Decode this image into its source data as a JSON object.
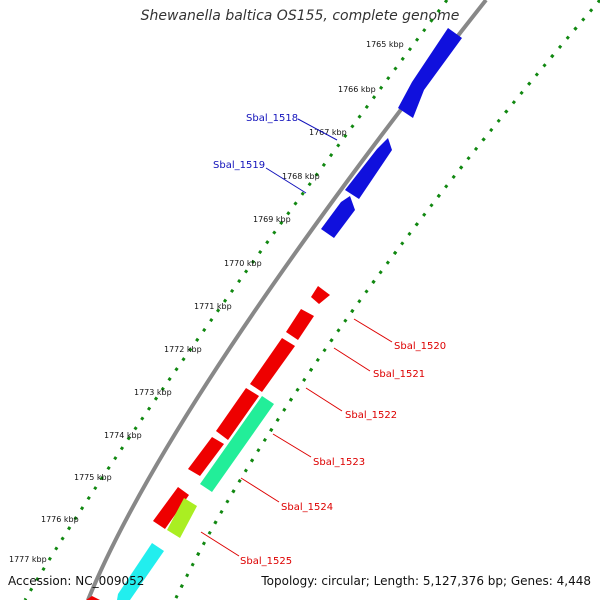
{
  "title": "Shewanella baltica OS155, complete genome",
  "footer": {
    "accession": "Accession: NC_009052",
    "summary": "Topology: circular; Length: 5,127,376 bp; Genes: 4,448"
  },
  "kbp_ticks": [
    "1765 kbp",
    "1766 kbp",
    "1767 kbp",
    "1768 kbp",
    "1769 kbp",
    "1770 kbp",
    "1771 kbp",
    "1772 kbp",
    "1773 kbp",
    "1774 kbp",
    "1775 kbp",
    "1776 kbp",
    "1777 kbp"
  ],
  "genes": [
    {
      "label": "Sbal_1518",
      "strand": "forward",
      "color": "#1010dd"
    },
    {
      "label": "Sbal_1519",
      "strand": "forward",
      "color": "#1010dd"
    },
    {
      "label": "Sbal_1520",
      "strand": "reverse",
      "color": "#ee0000"
    },
    {
      "label": "Sbal_1521",
      "strand": "reverse",
      "color": "#ee0000"
    },
    {
      "label": "Sbal_1522",
      "strand": "reverse",
      "color": "#ee0000"
    },
    {
      "label": "Sbal_1523",
      "strand": "reverse",
      "color": "#ee0000"
    },
    {
      "label": "Sbal_1524",
      "strand": "reverse",
      "color": "#ee0000"
    },
    {
      "label": "Sbal_1525",
      "strand": "reverse",
      "color": "#ee0000"
    }
  ],
  "colors": {
    "forward": "#1010dd",
    "reverse": "#ee0000",
    "green": "#22ee99",
    "lime": "#aaee22",
    "cyan": "#22eeee",
    "backbone": "#888888",
    "dots": "#118811",
    "label_blue": "#1111bb",
    "label_red": "#dd0000"
  }
}
